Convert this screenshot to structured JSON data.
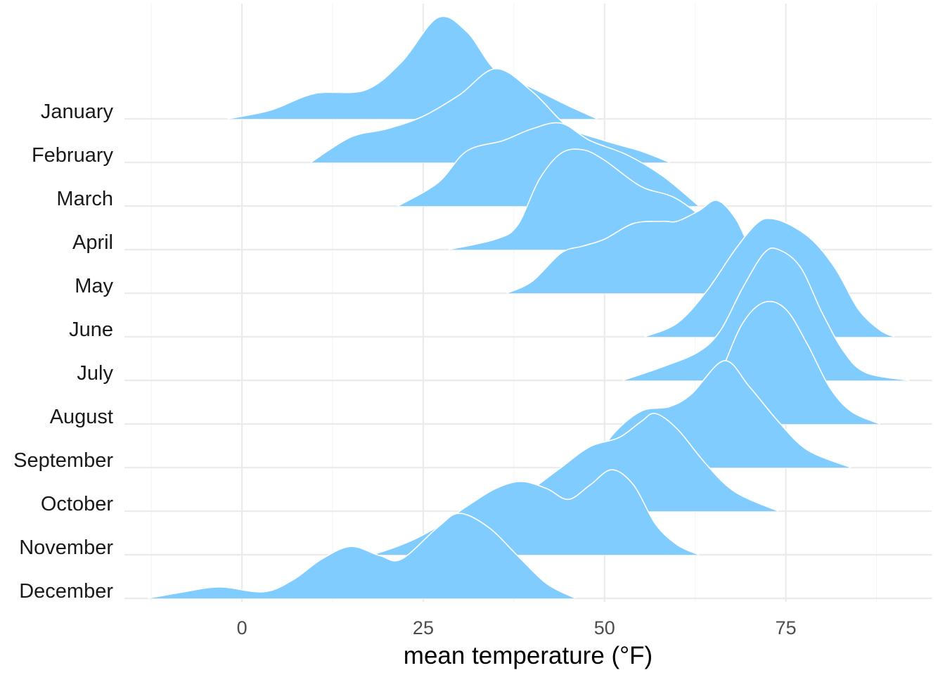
{
  "chart_data": {
    "type": "ridgeline",
    "title": "",
    "xlabel": "mean temperature (°F)",
    "ylabel": "",
    "xlim": [
      -16.2,
      95.1
    ],
    "x_ticks": [
      0,
      25,
      50,
      75
    ],
    "grid": true,
    "fill_color": "#80ccff",
    "outline_color": "#ffffff",
    "series": [
      {
        "name": "January",
        "points": [
          [
            -2,
            0
          ],
          [
            4,
            0.2
          ],
          [
            10,
            0.58
          ],
          [
            17,
            0.66
          ],
          [
            22,
            1.3
          ],
          [
            27,
            2.32
          ],
          [
            31,
            2.0
          ],
          [
            35,
            1.11
          ],
          [
            40,
            0.71
          ],
          [
            45,
            0.3
          ],
          [
            49,
            0
          ]
        ]
      },
      {
        "name": "February",
        "points": [
          [
            9.5,
            0
          ],
          [
            15,
            0.58
          ],
          [
            20,
            0.77
          ],
          [
            25,
            1.06
          ],
          [
            30,
            1.55
          ],
          [
            35,
            2.15
          ],
          [
            40,
            1.63
          ],
          [
            45,
            0.82
          ],
          [
            50,
            0.5
          ],
          [
            55,
            0.26
          ],
          [
            59,
            0
          ]
        ]
      },
      {
        "name": "March",
        "points": [
          [
            21.5,
            0
          ],
          [
            27,
            0.53
          ],
          [
            31,
            1.26
          ],
          [
            36,
            1.5
          ],
          [
            40,
            1.77
          ],
          [
            44,
            1.9
          ],
          [
            48,
            1.5
          ],
          [
            53,
            1.18
          ],
          [
            58,
            0.69
          ],
          [
            63,
            0
          ]
        ]
      },
      {
        "name": "April",
        "points": [
          [
            28.5,
            0
          ],
          [
            35,
            0.24
          ],
          [
            38,
            0.56
          ],
          [
            41,
            1.61
          ],
          [
            44,
            2.21
          ],
          [
            47,
            2.29
          ],
          [
            50,
            2.05
          ],
          [
            55,
            1.45
          ],
          [
            60,
            1.16
          ],
          [
            66,
            0.4
          ],
          [
            69,
            0
          ]
        ]
      },
      {
        "name": "May",
        "points": [
          [
            36.5,
            0
          ],
          [
            40,
            0.27
          ],
          [
            44,
            0.92
          ],
          [
            47,
            1.08
          ],
          [
            50,
            1.24
          ],
          [
            54,
            1.6
          ],
          [
            58,
            1.65
          ],
          [
            60,
            1.65
          ],
          [
            63,
            1.89
          ],
          [
            65.5,
            2.13
          ],
          [
            68,
            1.73
          ],
          [
            70,
            1.08
          ],
          [
            73,
            0.35
          ],
          [
            75,
            0
          ]
        ]
      },
      {
        "name": "June",
        "points": [
          [
            55.5,
            0
          ],
          [
            60,
            0.31
          ],
          [
            64,
            1.03
          ],
          [
            68,
            2.0
          ],
          [
            71,
            2.6
          ],
          [
            73,
            2.71
          ],
          [
            76,
            2.53
          ],
          [
            79,
            2.16
          ],
          [
            82,
            1.52
          ],
          [
            85,
            0.63
          ],
          [
            88,
            0.15
          ],
          [
            90,
            0
          ]
        ]
      },
      {
        "name": "July",
        "points": [
          [
            52.5,
            0
          ],
          [
            58,
            0.31
          ],
          [
            63,
            0.66
          ],
          [
            66,
            1.15
          ],
          [
            69,
            2.11
          ],
          [
            72,
            2.92
          ],
          [
            74,
            3.0
          ],
          [
            77,
            2.6
          ],
          [
            80,
            1.55
          ],
          [
            83,
            0.66
          ],
          [
            86,
            0.18
          ],
          [
            92,
            0
          ]
        ]
      },
      {
        "name": "August",
        "points": [
          [
            56,
            0
          ],
          [
            60,
            0.08
          ],
          [
            63,
            0.25
          ],
          [
            66,
            1.18
          ],
          [
            69,
            2.3
          ],
          [
            72,
            2.79
          ],
          [
            75,
            2.63
          ],
          [
            78,
            1.82
          ],
          [
            81,
            0.85
          ],
          [
            84,
            0.29
          ],
          [
            88,
            0
          ]
        ]
      },
      {
        "name": "September",
        "points": [
          [
            48.5,
            0
          ],
          [
            51,
            0.73
          ],
          [
            55,
            1.29
          ],
          [
            59,
            1.4
          ],
          [
            62,
            1.69
          ],
          [
            66.5,
            2.45
          ],
          [
            70,
            1.85
          ],
          [
            74,
            1.05
          ],
          [
            78,
            0.4
          ],
          [
            84,
            0
          ]
        ]
      },
      {
        "name": "October",
        "points": [
          [
            36,
            0
          ],
          [
            40,
            0.5
          ],
          [
            44,
            1.0
          ],
          [
            48,
            1.48
          ],
          [
            52,
            1.69
          ],
          [
            55,
            2.05
          ],
          [
            57,
            2.24
          ],
          [
            60,
            1.89
          ],
          [
            64,
            1.08
          ],
          [
            68,
            0.44
          ],
          [
            74,
            0
          ]
        ]
      },
      {
        "name": "November",
        "points": [
          [
            18,
            0
          ],
          [
            22,
            0.23
          ],
          [
            26,
            0.55
          ],
          [
            31,
            1.11
          ],
          [
            35,
            1.52
          ],
          [
            38.5,
            1.68
          ],
          [
            42,
            1.52
          ],
          [
            45,
            1.27
          ],
          [
            48,
            1.6
          ],
          [
            51,
            1.95
          ],
          [
            54,
            1.6
          ],
          [
            57,
            0.71
          ],
          [
            60,
            0.23
          ],
          [
            63,
            0
          ]
        ]
      },
      {
        "name": "December",
        "points": [
          [
            -13,
            0
          ],
          [
            -8,
            0.15
          ],
          [
            -3,
            0.26
          ],
          [
            3,
            0.15
          ],
          [
            7,
            0.42
          ],
          [
            11,
            0.9
          ],
          [
            15,
            1.19
          ],
          [
            19,
            0.98
          ],
          [
            22,
            0.9
          ],
          [
            27,
            1.63
          ],
          [
            30,
            1.95
          ],
          [
            34,
            1.63
          ],
          [
            38,
            0.98
          ],
          [
            42,
            0.34
          ],
          [
            46,
            0
          ]
        ]
      }
    ]
  }
}
